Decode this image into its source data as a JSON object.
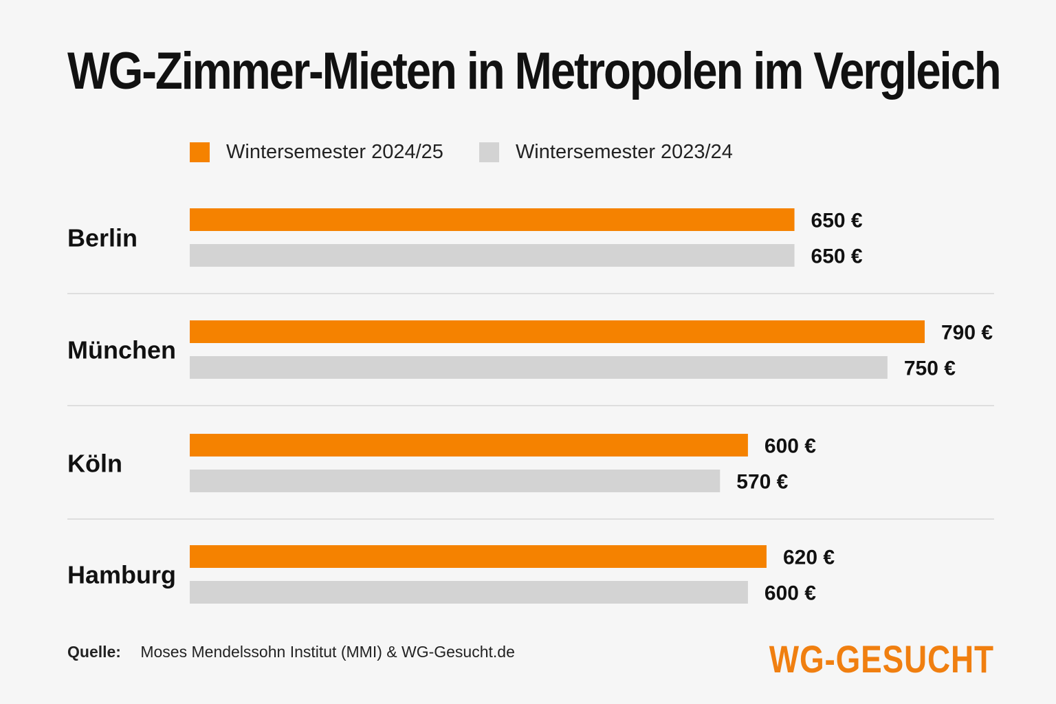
{
  "chart_data": {
    "type": "bar",
    "orientation": "horizontal",
    "title": "WG-Zimmer-Mieten in Metropolen im Vergleich",
    "categories": [
      "Berlin",
      "München",
      "Köln",
      "Hamburg"
    ],
    "series": [
      {
        "name": "Wintersemester 2024/25",
        "color": "#f58200",
        "values": [
          650,
          790,
          600,
          620
        ],
        "labels": [
          "650 €",
          "790 €",
          "600 €",
          "620 €"
        ]
      },
      {
        "name": "Wintersemester 2023/24",
        "color": "#d3d3d3",
        "values": [
          650,
          750,
          570,
          600
        ],
        "labels": [
          "650 €",
          "750 €",
          "570 €",
          "600 €"
        ]
      }
    ],
    "unit": "€",
    "legend": "top-left",
    "grid": false
  },
  "source": {
    "label": "Quelle:",
    "text": "Moses Mendelssohn Institut (MMI) & WG-Gesucht.de"
  },
  "brand": {
    "text": "WG-GESUCHT",
    "color": "#f07f10"
  }
}
